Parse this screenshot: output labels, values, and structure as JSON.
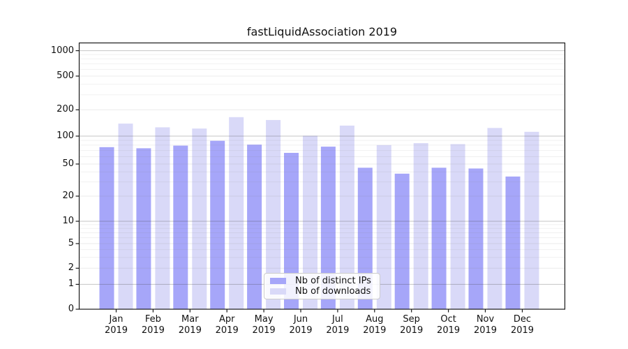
{
  "title": "fastLiquidAssociation 2019",
  "chart_data": {
    "type": "bar",
    "title": "fastLiquidAssociation 2019",
    "categories": [
      "Jan",
      "Feb",
      "Mar",
      "Apr",
      "May",
      "Jun",
      "Jul",
      "Aug",
      "Sep",
      "Oct",
      "Nov",
      "Dec"
    ],
    "category_year": "2019",
    "series": [
      {
        "name": "Nb of distinct IPs",
        "color": "#a6a6f9",
        "values": [
          76,
          74,
          79,
          89,
          81,
          66,
          77,
          45,
          38,
          45,
          44,
          35
        ]
      },
      {
        "name": "Nb of downloads",
        "color": "#d9d9f8",
        "values": [
          139,
          126,
          122,
          165,
          153,
          101,
          132,
          80,
          84,
          82,
          124,
          112
        ]
      }
    ],
    "xlabel": "",
    "ylabel": "",
    "yscale": "symlog",
    "y_ticks": [
      0,
      1,
      2,
      5,
      10,
      20,
      50,
      100,
      200,
      500,
      1000
    ],
    "ylim": [
      0,
      1250
    ],
    "grid": true,
    "legend_position": "lower center",
    "grid_major_color": "#c9c9c9",
    "grid_minor_color": "#ededed",
    "axis_color": "#1a1a1a"
  }
}
